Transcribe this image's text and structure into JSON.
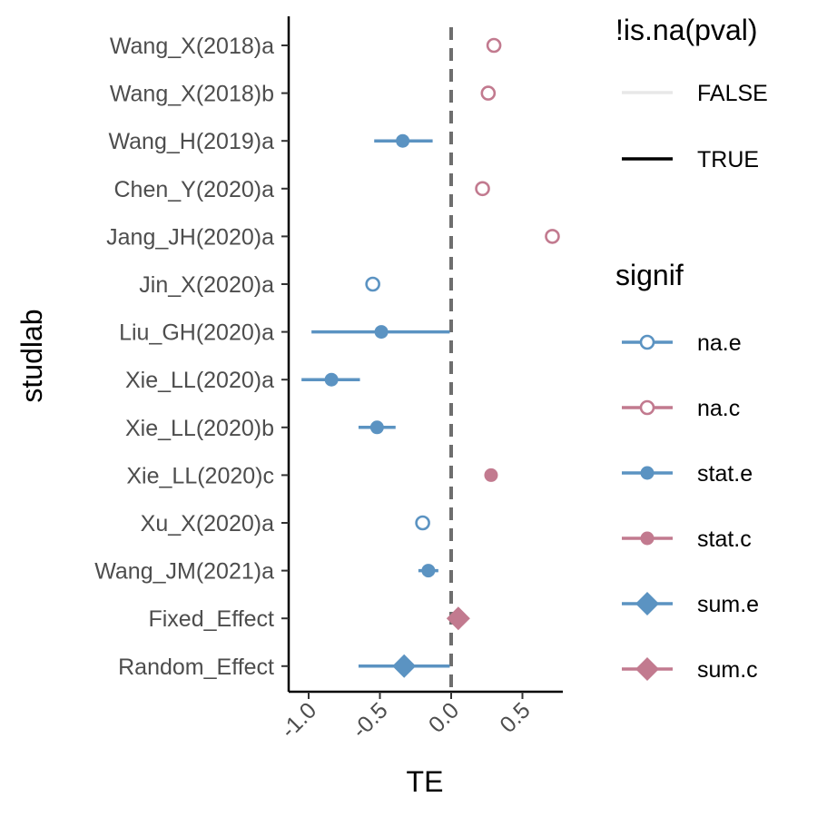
{
  "chart_data": {
    "type": "forest",
    "xlabel": "TE",
    "ylabel": "studlab",
    "xlim": [
      -1.15,
      0.8
    ],
    "xticks": [
      -1.0,
      -0.5,
      0.0,
      0.5
    ],
    "xtick_labels": [
      "-1.0",
      "-0.5",
      "0.0",
      "0.5"
    ],
    "reference_line": 0.0,
    "studies": [
      {
        "label": "Wang_X(2018)a",
        "te": 0.3,
        "lower": null,
        "upper": null,
        "signif": "na.c"
      },
      {
        "label": "Wang_X(2018)b",
        "te": 0.26,
        "lower": null,
        "upper": null,
        "signif": "na.c"
      },
      {
        "label": "Wang_H(2019)a",
        "te": -0.34,
        "lower": -0.54,
        "upper": -0.13,
        "signif": "stat.e"
      },
      {
        "label": "Chen_Y(2020)a",
        "te": 0.22,
        "lower": null,
        "upper": null,
        "signif": "na.c"
      },
      {
        "label": "Jang_JH(2020)a",
        "te": 0.71,
        "lower": null,
        "upper": null,
        "signif": "na.c"
      },
      {
        "label": "Jin_X(2020)a",
        "te": -0.55,
        "lower": null,
        "upper": null,
        "signif": "na.e"
      },
      {
        "label": "Liu_GH(2020)a",
        "te": -0.49,
        "lower": -0.98,
        "upper": -0.01,
        "signif": "stat.e"
      },
      {
        "label": "Xie_LL(2020)a",
        "te": -0.84,
        "lower": -1.05,
        "upper": -0.64,
        "signif": "stat.e"
      },
      {
        "label": "Xie_LL(2020)b",
        "te": -0.52,
        "lower": -0.65,
        "upper": -0.39,
        "signif": "stat.e"
      },
      {
        "label": "Xie_LL(2020)c",
        "te": 0.28,
        "lower": 0.27,
        "upper": 0.29,
        "signif": "stat.c"
      },
      {
        "label": "Xu_X(2020)a",
        "te": -0.2,
        "lower": null,
        "upper": null,
        "signif": "na.e"
      },
      {
        "label": "Wang_JM(2021)a",
        "te": -0.16,
        "lower": -0.23,
        "upper": -0.09,
        "signif": "stat.e"
      },
      {
        "label": "Fixed_Effect",
        "te": 0.05,
        "lower": 0.03,
        "upper": 0.07,
        "signif": "sum.c"
      },
      {
        "label": "Random_Effect",
        "te": -0.33,
        "lower": -0.65,
        "upper": -0.01,
        "signif": "sum.e"
      }
    ],
    "legend": {
      "pval_title": "!is.na(pval)",
      "pval_items": [
        {
          "label": "FALSE",
          "color": "#e8e8e8"
        },
        {
          "label": "TRUE",
          "color": "#000000"
        }
      ],
      "signif_title": "signif",
      "signif_items": [
        {
          "label": "na.e",
          "shape": "open-circle",
          "color": "#5b93c2"
        },
        {
          "label": "na.c",
          "shape": "open-circle",
          "color": "#c27a8f"
        },
        {
          "label": "stat.e",
          "shape": "circle",
          "color": "#5b93c2"
        },
        {
          "label": "stat.c",
          "shape": "circle",
          "color": "#c27a8f"
        },
        {
          "label": "sum.e",
          "shape": "diamond",
          "color": "#5b93c2"
        },
        {
          "label": "sum.c",
          "shape": "diamond",
          "color": "#c27a8f"
        }
      ]
    },
    "colors": {
      "e": "#5b93c2",
      "c": "#c27a8f",
      "axis": "#000000",
      "reference": "#6e6e6e"
    }
  }
}
